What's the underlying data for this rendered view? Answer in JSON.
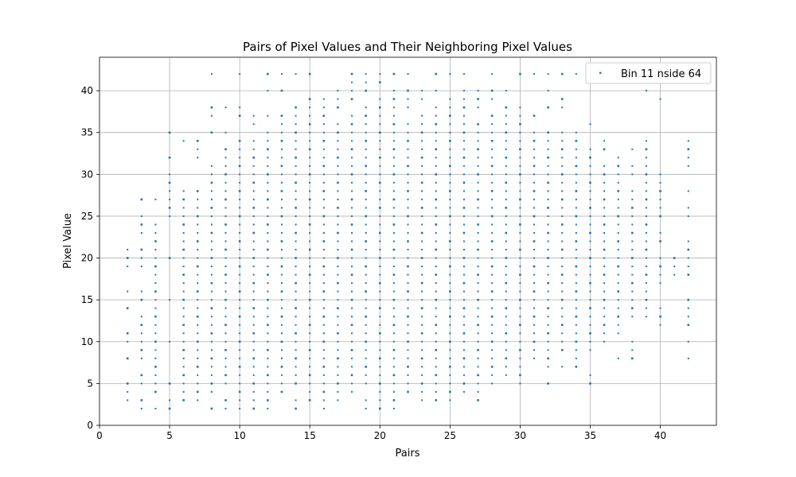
{
  "chart_data": {
    "type": "scatter",
    "title": "Pairs of Pixel Values and Their Neighboring Pixel Values",
    "xlabel": "Pairs",
    "ylabel": "Pixel Value",
    "xlim": [
      0,
      44
    ],
    "ylim": [
      0,
      44
    ],
    "xticks": [
      0,
      5,
      10,
      15,
      20,
      25,
      30,
      35,
      40
    ],
    "yticks": [
      0,
      5,
      10,
      15,
      20,
      25,
      30,
      35,
      40
    ],
    "grid": true,
    "legend_placement": "top-right",
    "marker_color": "#1f77b4",
    "series": [
      {
        "name": "Bin 11 nside 64",
        "x_range": [
          2,
          42
        ],
        "y_range": [
          2,
          42
        ],
        "points": [
          [
            2,
            3
          ],
          [
            2,
            4
          ],
          [
            2,
            5
          ],
          [
            2,
            8
          ],
          [
            2,
            10
          ],
          [
            2,
            11
          ],
          [
            2,
            14
          ],
          [
            2,
            16
          ],
          [
            2,
            19
          ],
          [
            2,
            20
          ],
          [
            2,
            21
          ],
          [
            3,
            2
          ],
          [
            3,
            3
          ],
          [
            3,
            5
          ],
          [
            3,
            6
          ],
          [
            3,
            8
          ],
          [
            3,
            9
          ],
          [
            3,
            10
          ],
          [
            3,
            11
          ],
          [
            3,
            12
          ],
          [
            3,
            13
          ],
          [
            3,
            15
          ],
          [
            3,
            16
          ],
          [
            3,
            19
          ],
          [
            3,
            20
          ],
          [
            3,
            21
          ],
          [
            3,
            23
          ],
          [
            3,
            24
          ],
          [
            3,
            25
          ],
          [
            3,
            27
          ],
          [
            4,
            2
          ],
          [
            4,
            4
          ],
          [
            4,
            5
          ],
          [
            4,
            6
          ],
          [
            4,
            7
          ],
          [
            4,
            8
          ],
          [
            4,
            9
          ],
          [
            4,
            10
          ],
          [
            4,
            11
          ],
          [
            4,
            12
          ],
          [
            4,
            13
          ],
          [
            4,
            14
          ],
          [
            4,
            15
          ],
          [
            4,
            16
          ],
          [
            4,
            17
          ],
          [
            4,
            18
          ],
          [
            4,
            19
          ],
          [
            4,
            20
          ],
          [
            4,
            21
          ],
          [
            4,
            22
          ],
          [
            4,
            23
          ],
          [
            4,
            24
          ],
          [
            4,
            27
          ],
          [
            5,
            2
          ],
          [
            5,
            3
          ],
          [
            5,
            5
          ],
          [
            5,
            10
          ],
          [
            5,
            15
          ],
          [
            5,
            20
          ],
          [
            5,
            25
          ],
          [
            5,
            26
          ],
          [
            5,
            27
          ],
          [
            5,
            28
          ],
          [
            5,
            29
          ],
          [
            5,
            30
          ],
          [
            5,
            32
          ],
          [
            5,
            35
          ],
          [
            6,
            3
          ],
          [
            6,
            34
          ],
          [
            7,
            32
          ],
          [
            7,
            33
          ],
          [
            7,
            34
          ],
          [
            8,
            2
          ],
          [
            8,
            35
          ],
          [
            8,
            37
          ],
          [
            8,
            38
          ],
          [
            8,
            42
          ],
          [
            9,
            2
          ],
          [
            9,
            35
          ],
          [
            9,
            38
          ],
          [
            10,
            2
          ],
          [
            10,
            37
          ],
          [
            10,
            38
          ],
          [
            10,
            42
          ],
          [
            11,
            2
          ],
          [
            11,
            36
          ],
          [
            11,
            37
          ],
          [
            12,
            2
          ],
          [
            12,
            37
          ],
          [
            12,
            40
          ],
          [
            12,
            42
          ],
          [
            13,
            40
          ],
          [
            13,
            42
          ],
          [
            14,
            2
          ],
          [
            14,
            42
          ],
          [
            15,
            42
          ],
          [
            16,
            2
          ],
          [
            17,
            40
          ],
          [
            18,
            41
          ],
          [
            18,
            42
          ],
          [
            19,
            2
          ],
          [
            19,
            41
          ],
          [
            19,
            42
          ],
          [
            20,
            2
          ],
          [
            20,
            41
          ],
          [
            20,
            42
          ],
          [
            21,
            2
          ],
          [
            21,
            42
          ],
          [
            22,
            4
          ],
          [
            22,
            42
          ],
          [
            23,
            3
          ],
          [
            23,
            4
          ],
          [
            24,
            3
          ],
          [
            24,
            4
          ],
          [
            24,
            42
          ],
          [
            25,
            3
          ],
          [
            25,
            42
          ],
          [
            26,
            42
          ],
          [
            27,
            3
          ],
          [
            27,
            4
          ],
          [
            28,
            42
          ],
          [
            30,
            42
          ],
          [
            31,
            37
          ],
          [
            31,
            42
          ],
          [
            32,
            5
          ],
          [
            32,
            7
          ],
          [
            32,
            38
          ],
          [
            32,
            40
          ],
          [
            32,
            42
          ],
          [
            33,
            7
          ],
          [
            33,
            35
          ],
          [
            33,
            38
          ],
          [
            33,
            39
          ],
          [
            33,
            42
          ],
          [
            34,
            7
          ],
          [
            34,
            8
          ],
          [
            34,
            35
          ],
          [
            34,
            42
          ],
          [
            35,
            5
          ],
          [
            35,
            6
          ],
          [
            35,
            9
          ],
          [
            35,
            10
          ],
          [
            35,
            11
          ],
          [
            35,
            31
          ],
          [
            35,
            32
          ],
          [
            35,
            33
          ],
          [
            35,
            36
          ],
          [
            36,
            10
          ],
          [
            36,
            11
          ],
          [
            36,
            30
          ],
          [
            36,
            31
          ],
          [
            36,
            33
          ],
          [
            36,
            34
          ],
          [
            37,
            8
          ],
          [
            37,
            11
          ],
          [
            37,
            12
          ],
          [
            37,
            30
          ],
          [
            37,
            31
          ],
          [
            37,
            32
          ],
          [
            38,
            8
          ],
          [
            38,
            9
          ],
          [
            38,
            10
          ],
          [
            38,
            13
          ],
          [
            38,
            14
          ],
          [
            38,
            28
          ],
          [
            38,
            30
          ],
          [
            38,
            31
          ],
          [
            38,
            33
          ],
          [
            39,
            13
          ],
          [
            39,
            14
          ],
          [
            39,
            33
          ],
          [
            39,
            34
          ],
          [
            39,
            40
          ],
          [
            40,
            12
          ],
          [
            40,
            13
          ],
          [
            40,
            14
          ],
          [
            40,
            17
          ],
          [
            40,
            18
          ],
          [
            40,
            19
          ],
          [
            40,
            20
          ],
          [
            40,
            22
          ],
          [
            40,
            23
          ],
          [
            40,
            25
          ],
          [
            40,
            26
          ],
          [
            40,
            27
          ],
          [
            40,
            28
          ],
          [
            40,
            29
          ],
          [
            40,
            30
          ],
          [
            40,
            39
          ],
          [
            41,
            18
          ],
          [
            41,
            19
          ],
          [
            41,
            20
          ],
          [
            42,
            8
          ],
          [
            42,
            10
          ],
          [
            42,
            12
          ],
          [
            42,
            13
          ],
          [
            42,
            14
          ],
          [
            42,
            15
          ],
          [
            42,
            18
          ],
          [
            42,
            19
          ],
          [
            42,
            20
          ],
          [
            42,
            21
          ],
          [
            42,
            22
          ],
          [
            42,
            25
          ],
          [
            42,
            26
          ],
          [
            42,
            28
          ],
          [
            42,
            31
          ],
          [
            42,
            32
          ],
          [
            42,
            33
          ],
          [
            42,
            34
          ]
        ],
        "dense_region": [
          [
            6,
            3,
            28
          ],
          [
            7,
            3,
            28
          ],
          [
            8,
            3,
            31
          ],
          [
            9,
            3,
            33
          ],
          [
            10,
            3,
            34
          ],
          [
            11,
            3,
            34
          ],
          [
            12,
            3,
            35
          ],
          [
            13,
            3,
            38
          ],
          [
            14,
            3,
            39
          ],
          [
            15,
            3,
            39
          ],
          [
            16,
            3,
            39
          ],
          [
            17,
            3,
            39
          ],
          [
            18,
            3,
            40
          ],
          [
            19,
            3,
            40
          ],
          [
            20,
            3,
            40
          ],
          [
            21,
            3,
            40
          ],
          [
            22,
            5,
            40
          ],
          [
            23,
            5,
            40
          ],
          [
            24,
            5,
            40
          ],
          [
            25,
            4,
            40
          ],
          [
            26,
            4,
            40
          ],
          [
            27,
            5,
            40
          ],
          [
            28,
            5,
            40
          ],
          [
            29,
            6,
            40
          ],
          [
            30,
            5,
            38
          ],
          [
            31,
            8,
            35
          ],
          [
            32,
            8,
            35
          ],
          [
            33,
            9,
            34
          ],
          [
            34,
            9,
            34
          ],
          [
            35,
            12,
            30
          ],
          [
            36,
            12,
            29
          ],
          [
            37,
            13,
            29
          ],
          [
            38,
            15,
            27
          ],
          [
            39,
            15,
            32
          ]
        ]
      }
    ]
  }
}
